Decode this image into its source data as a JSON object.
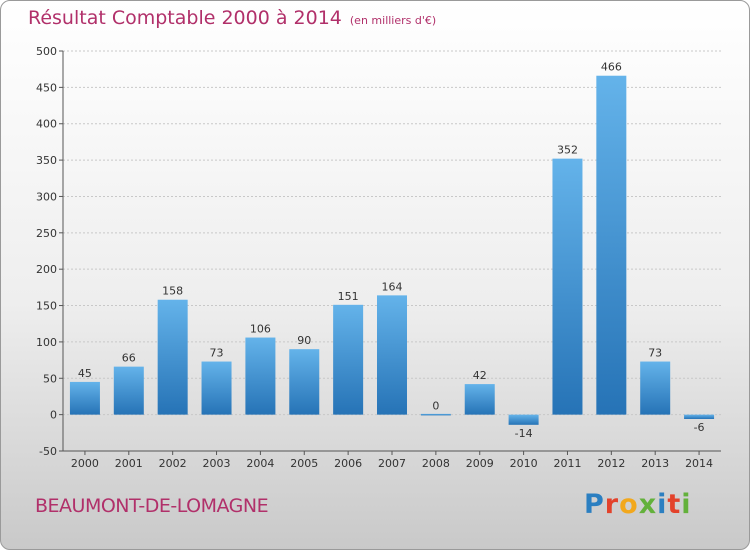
{
  "header": {
    "title": "Résultat Comptable 2000 à 2014",
    "subtitle": "(en milliers d'€)"
  },
  "footer": {
    "place": "BEAUMONT-DE-LOMAGNE",
    "logo_text": "Proxiti"
  },
  "colors": {
    "bar": "#3a8fd4",
    "bar_light": "#64b3ea",
    "bar_dark": "#2673b6",
    "title": "#b1306a",
    "grid": "#c8c8c8"
  },
  "chart_data": {
    "type": "bar",
    "categories": [
      "2000",
      "2001",
      "2002",
      "2003",
      "2004",
      "2005",
      "2006",
      "2007",
      "2008",
      "2009",
      "2010",
      "2011",
      "2012",
      "2013",
      "2014"
    ],
    "values": [
      45,
      66,
      158,
      73,
      106,
      90,
      151,
      164,
      0,
      42,
      -14,
      352,
      466,
      73,
      -6
    ],
    "title": "Résultat Comptable 2000 à 2014",
    "xlabel": "",
    "ylabel": "",
    "ylim": [
      -50,
      500
    ],
    "yticks": [
      -50,
      0,
      50,
      100,
      150,
      200,
      250,
      300,
      350,
      400,
      450,
      500
    ],
    "grid": true
  }
}
